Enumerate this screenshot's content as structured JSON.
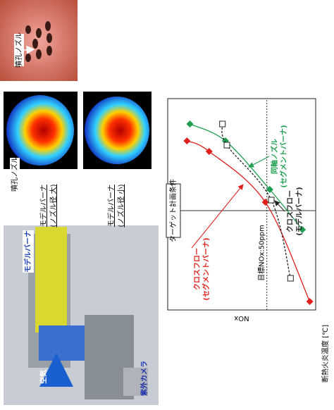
{
  "figure": {
    "apparatus": {
      "burner_label": "モデルバーナ",
      "air_label": "空気",
      "camera_label": "紫外カメラ"
    },
    "flames": [
      {
        "caption_lines": [
          "モデルバーナ",
          "(ノズル径 大)"
        ],
        "nozzle_label": "噴孔ノズル"
      },
      {
        "caption_lines": [
          "モデルバーナ",
          "(ノズル径 小)"
        ]
      }
    ],
    "nozzle_photo_label": "噴孔ノズル"
  },
  "chart_data": {
    "type": "line",
    "xlabel": "断熱火炎温度 [℃]",
    "ylabel": "NOx",
    "xlim": [
      0,
      100
    ],
    "ylim": [
      0,
      100
    ],
    "series": [
      {
        "label_lines": [
          "クロスフロー",
          "(セグメントバーナ)"
        ],
        "color": "#e0201c",
        "marker": "diamond",
        "dashed": false,
        "x": [
          80,
          75,
          51,
          4
        ],
        "y": [
          87,
          72,
          34,
          4
        ]
      },
      {
        "label_lines": [
          "同軸ノズル",
          "(セグメントバーナ)"
        ],
        "color": "#1e9e4e",
        "marker": "diamond",
        "dashed": false,
        "x": [
          88,
          80,
          57,
          38
        ],
        "y": [
          85,
          61,
          31,
          9
        ]
      },
      {
        "label_lines": [
          "クロスフロー",
          "(モデルバーナ)"
        ],
        "color": "#222222",
        "marker": "square",
        "dashed": true,
        "x": [
          88,
          78,
          52,
          15
        ],
        "y": [
          63,
          60,
          30,
          17
        ]
      }
    ],
    "target_condition": {
      "label": "ターゲット計画条件",
      "x": 47
    },
    "target_nox": {
      "label": "目標NOx:50ppm",
      "y": 33
    }
  }
}
